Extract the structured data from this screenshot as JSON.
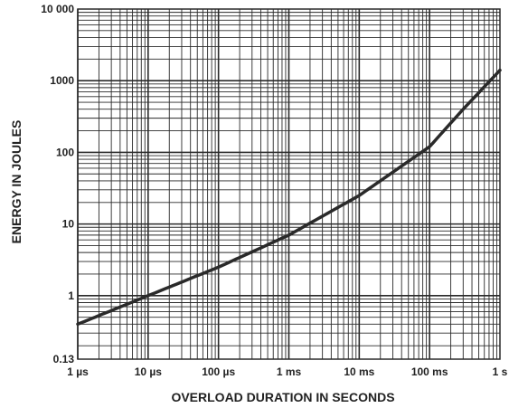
{
  "chart_data": {
    "type": "line",
    "xlabel": "OVERLOAD DURATION IN SECONDS",
    "ylabel": "ENERGY IN JOULES",
    "x_scale": "log",
    "y_scale": "log",
    "xlim": [
      1e-06,
      1
    ],
    "ylim": [
      0.13,
      10000
    ],
    "grid": true,
    "x_tick_values": [
      1e-06,
      1e-05,
      0.0001,
      0.001,
      0.01,
      0.1,
      1
    ],
    "x_tick_labels": [
      "1 µs",
      "10 µs",
      "100 µs",
      "1 ms",
      "10 ms",
      "100 ms",
      "1 s"
    ],
    "y_tick_values": [
      0.13,
      1,
      10,
      100,
      1000,
      10000
    ],
    "y_tick_labels": [
      "0.13",
      "1",
      "10",
      "100",
      "1000",
      "10 000"
    ],
    "series": [
      {
        "x": [
          1e-06,
          1e-05,
          0.0001,
          0.001,
          0.01,
          0.1,
          0.3,
          1
        ],
        "y": [
          0.4,
          1.0,
          2.5,
          7.0,
          25,
          120,
          400,
          1400
        ]
      }
    ]
  }
}
